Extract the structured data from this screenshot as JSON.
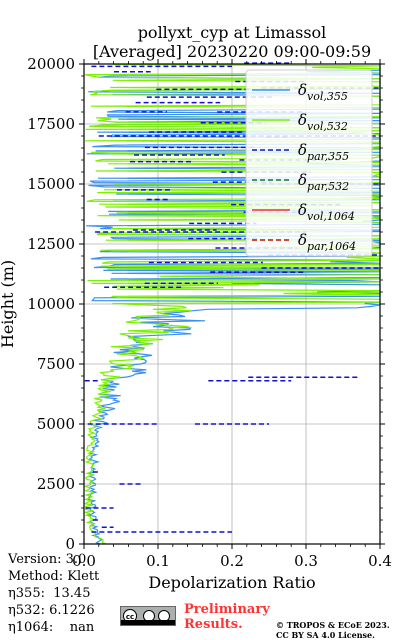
{
  "title_line1": "pollyxt_cyp at Limassol",
  "title_line2": "[Averaged] 20230220 09:00-09:59",
  "chart_data": {
    "type": "line",
    "title": "pollyxt_cyp at Limassol [Averaged] 20230220 09:00-09:59",
    "xlabel": "Depolarization Ratio",
    "ylabel": "Height (m)",
    "xlim": [
      0.0,
      0.4
    ],
    "ylim": [
      0,
      20000
    ],
    "xticks": [
      "0.0",
      "0.1",
      "0.2",
      "0.3",
      "0.4"
    ],
    "yticks": [
      "0",
      "2500",
      "5000",
      "7500",
      "10000",
      "12500",
      "15000",
      "17500",
      "20000"
    ],
    "grid": true,
    "legend_position": "upper-right",
    "series": [
      {
        "name": "δvol,355",
        "color": "#3a8ff0",
        "style": "solid",
        "points": [
          [
            0.02,
            0
          ],
          [
            0.015,
            500
          ],
          [
            0.012,
            1000
          ],
          [
            0.01,
            2000
          ],
          [
            0.012,
            3000
          ],
          [
            0.015,
            4000
          ],
          [
            0.018,
            5000
          ],
          [
            0.02,
            5500
          ],
          [
            0.03,
            6000
          ],
          [
            0.025,
            6500
          ],
          [
            0.04,
            7000
          ],
          [
            0.06,
            7500
          ],
          [
            0.05,
            8000
          ],
          [
            0.07,
            8500
          ],
          [
            0.09,
            9000
          ],
          [
            0.1,
            9500
          ],
          [
            0.3,
            10000
          ],
          [
            0.35,
            10500
          ],
          [
            0.25,
            11000
          ],
          [
            0.4,
            11500
          ],
          [
            0.38,
            12000
          ],
          [
            0.35,
            12500
          ],
          [
            0.4,
            13000
          ],
          [
            0.4,
            14000
          ],
          [
            0.4,
            15000
          ],
          [
            0.4,
            16000
          ],
          [
            0.4,
            17000
          ],
          [
            0.4,
            18000
          ],
          [
            0.4,
            19000
          ],
          [
            0.4,
            20000
          ]
        ]
      },
      {
        "name": "δvol,532",
        "color": "#7cf000",
        "style": "solid",
        "points": [
          [
            0.03,
            0
          ],
          [
            0.012,
            500
          ],
          [
            0.008,
            1000
          ],
          [
            0.007,
            2000
          ],
          [
            0.008,
            3000
          ],
          [
            0.01,
            4000
          ],
          [
            0.012,
            5000
          ],
          [
            0.015,
            5500
          ],
          [
            0.02,
            6000
          ],
          [
            0.02,
            6500
          ],
          [
            0.03,
            7000
          ],
          [
            0.04,
            7500
          ],
          [
            0.05,
            8000
          ],
          [
            0.06,
            8500
          ],
          [
            0.08,
            9000
          ],
          [
            0.09,
            9500
          ],
          [
            0.1,
            10000
          ],
          [
            0.12,
            10500
          ],
          [
            0.14,
            11000
          ],
          [
            0.16,
            11500
          ],
          [
            0.18,
            12000
          ],
          [
            0.2,
            12500
          ],
          [
            0.25,
            13000
          ],
          [
            0.3,
            14000
          ],
          [
            0.35,
            15000
          ],
          [
            0.38,
            16000
          ],
          [
            0.4,
            17000
          ],
          [
            0.4,
            18000
          ],
          [
            0.4,
            19000
          ],
          [
            0.4,
            20000
          ]
        ]
      },
      {
        "name": "δpar,355",
        "color": "#1010d0",
        "style": "dashed",
        "points": [
          [
            0.2,
            500
          ],
          [
            0.04,
            700
          ],
          [
            0.02,
            1000
          ],
          [
            0.04,
            1500
          ],
          [
            0.08,
            2500
          ],
          [
            0.02,
            3000
          ],
          [
            0.1,
            5000
          ],
          [
            0.25,
            5000
          ],
          [
            0.28,
            6800
          ],
          [
            0.02,
            6800
          ],
          [
            0.37,
            6950
          ],
          [
            0.4,
            11500
          ],
          [
            0.3,
            13000
          ],
          [
            0.4,
            15000
          ],
          [
            0.35,
            16000
          ],
          [
            0.4,
            17000
          ],
          [
            0.3,
            18000
          ],
          [
            0.4,
            19000
          ],
          [
            0.2,
            19900
          ]
        ]
      },
      {
        "name": "δpar,532",
        "color": "#0d7a3a",
        "style": "dashed",
        "points": []
      },
      {
        "name": "δvol,1064",
        "color": "#ee3333",
        "style": "solid",
        "points": []
      },
      {
        "name": "δpar,1064",
        "color": "#c01010",
        "style": "dashed",
        "points": []
      }
    ]
  },
  "footer": {
    "version": "Version: 3.0",
    "method": "Method: Klett",
    "eta355": "η355:  13.45",
    "eta532": "η532: 6.1226",
    "eta1064": "η1064:    nan"
  },
  "license_badge": {
    "cc": "cc"
  },
  "preliminary_line1": "Preliminary",
  "preliminary_line2": "Results.",
  "copyright_line1": "© TROPOS & ECoE 2023.",
  "copyright_line2": "CC BY SA 4.0 License."
}
